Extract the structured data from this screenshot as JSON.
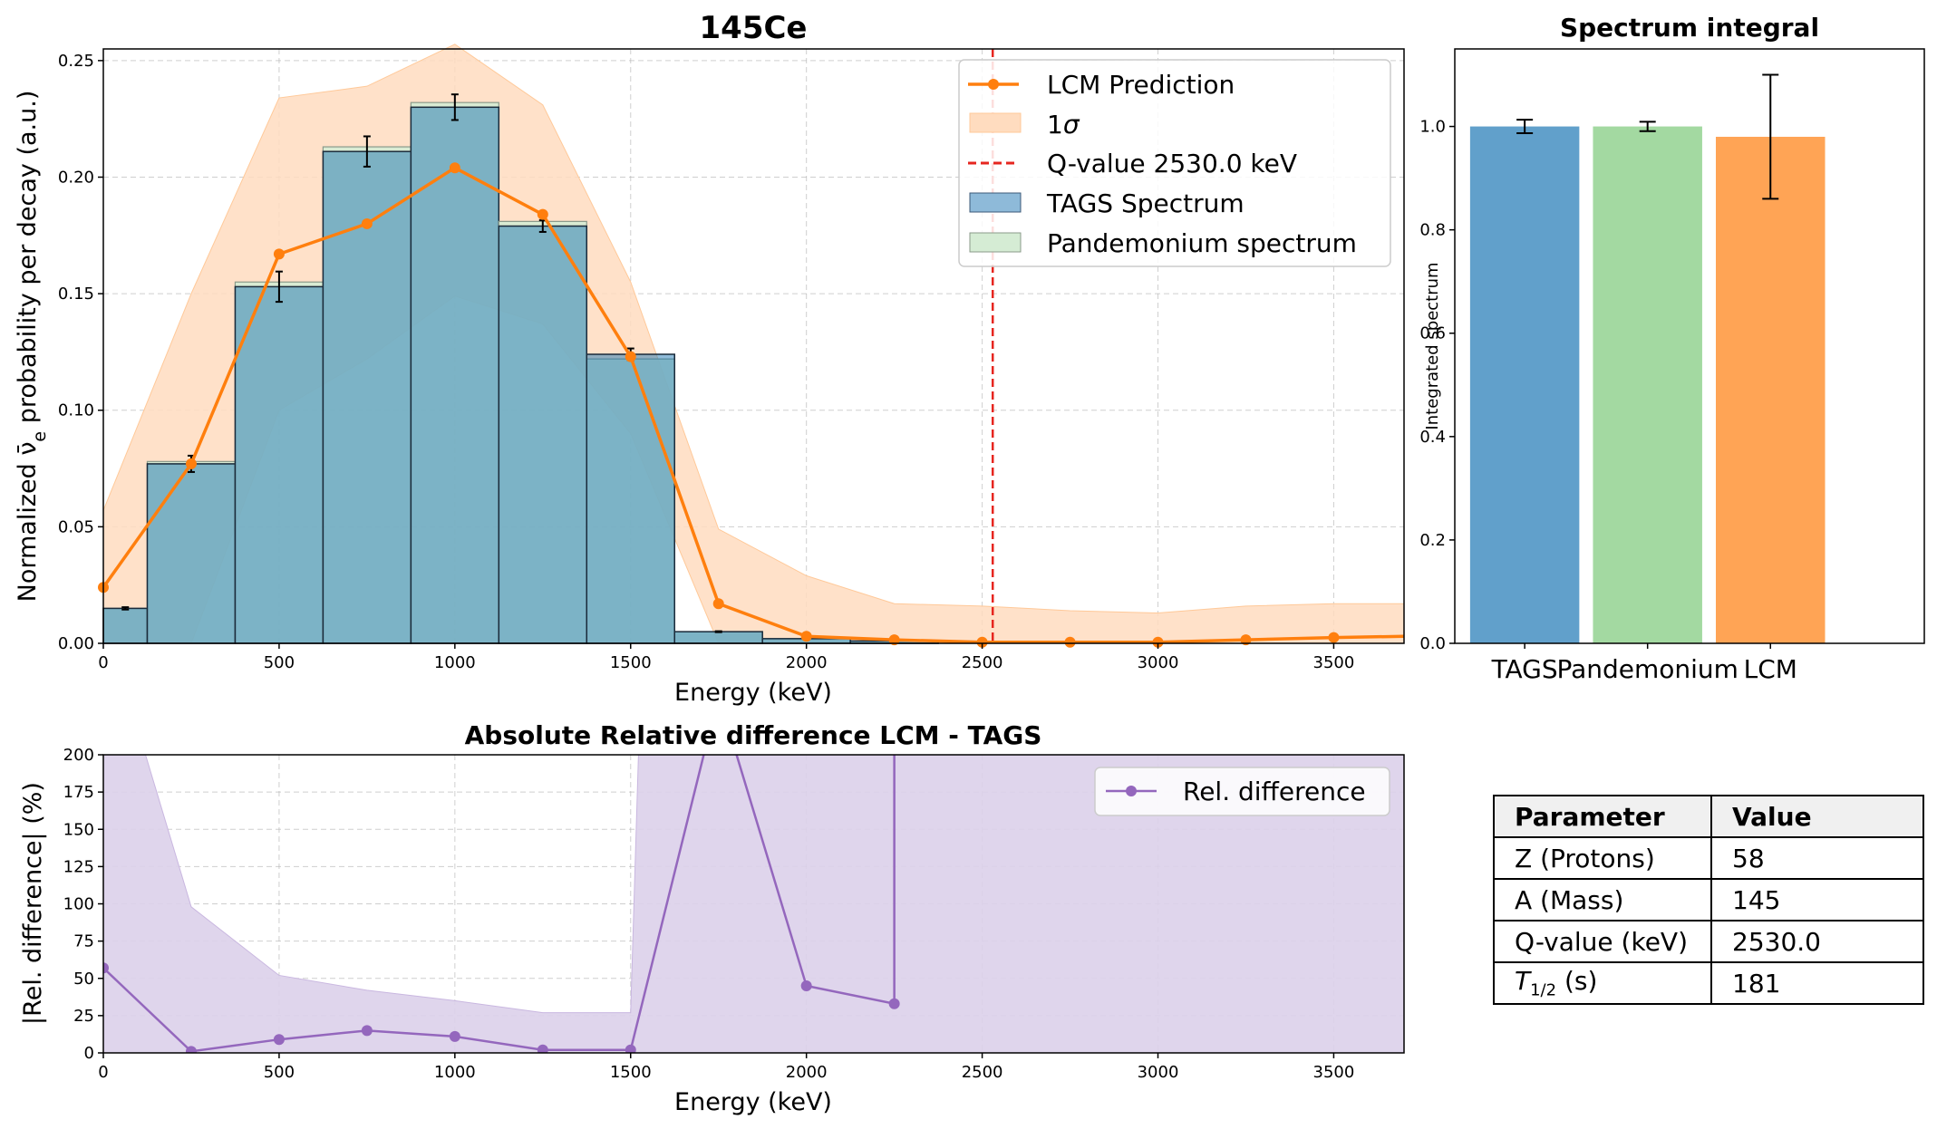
{
  "chart_data": [
    {
      "type": "bar",
      "title": "145Ce",
      "xlabel": "Energy (keV)",
      "ylabel": "Normalized ν̄e probability per decay (a.u.)",
      "xlim": [
        0,
        3700
      ],
      "ylim": [
        0,
        0.255
      ],
      "xticks": [
        "0",
        "500",
        "1000",
        "1500",
        "2000",
        "2500",
        "3000",
        "3500"
      ],
      "yticks": [
        "0.00",
        "0.05",
        "0.10",
        "0.15",
        "0.20",
        "0.25"
      ],
      "grid": true,
      "legend_position": "top-right",
      "legend": [
        "LCM Prediction",
        "1σ",
        "Q-value 2530.0 keV",
        "TAGS Spectrum",
        "Pandemonium spectrum"
      ],
      "bins_lower_edges": [
        0,
        125,
        375,
        625,
        875,
        1125,
        1375,
        1625,
        1875,
        2125
      ],
      "bins_upper_edges": [
        125,
        375,
        625,
        875,
        1125,
        1375,
        1625,
        1875,
        2125,
        2375
      ],
      "tags_spectrum": [
        0.015,
        0.077,
        0.153,
        0.211,
        0.23,
        0.179,
        0.124,
        0.005,
        0.002,
        0.001
      ],
      "tags_errors": [
        0.0005,
        0.0035,
        0.0065,
        0.0065,
        0.0055,
        0.0025,
        0.0025,
        0.0002,
        0.0001,
        0.0001
      ],
      "pandemonium_spectrum": [
        0.015,
        0.078,
        0.155,
        0.213,
        0.232,
        0.181,
        0.122,
        0.005,
        0.002,
        0.001
      ],
      "lcm_prediction": {
        "x": [
          0,
          250,
          500,
          750,
          1000,
          1250,
          1500,
          1750,
          2000,
          2250,
          2500,
          2750,
          3000,
          3250,
          3500,
          3700
        ],
        "y": [
          0.024,
          0.077,
          0.167,
          0.18,
          0.204,
          0.184,
          0.123,
          0.017,
          0.003,
          0.0015,
          0.0005,
          0.0005,
          0.0005,
          0.0015,
          0.0025,
          0.003
        ],
        "markers": [
          true,
          true,
          true,
          true,
          true,
          true,
          true,
          true,
          true,
          true,
          true,
          true,
          true,
          true,
          true,
          false
        ]
      },
      "one_sigma_band": {
        "x": [
          0,
          250,
          500,
          750,
          1000,
          1250,
          1500,
          1750,
          2000,
          2250,
          2500,
          2750,
          3000,
          3250,
          3500,
          3700
        ],
        "upper": [
          0.057,
          0.15,
          0.234,
          0.239,
          0.258,
          0.231,
          0.155,
          0.049,
          0.029,
          0.017,
          0.016,
          0.014,
          0.013,
          0.016,
          0.017,
          0.017
        ],
        "lower": [
          0.0,
          0.0,
          0.1,
          0.122,
          0.149,
          0.137,
          0.09,
          0.0,
          0.0,
          0.0,
          0.0,
          0.0,
          0.0,
          0.0,
          0.0,
          0.0
        ]
      },
      "q_value_line_kev": 2530.0,
      "colors": {
        "lcm": "#ff7f0e",
        "band": "#ffdcbf",
        "tags": "#1f77b4",
        "pandemonium": "#2ca02c",
        "qvalue": "#e6261f"
      }
    },
    {
      "type": "bar",
      "title": "Spectrum integral",
      "ylabel": "Integrated spectrum",
      "categories": [
        "TAGS",
        "Pandemonium",
        "LCM"
      ],
      "values": [
        1.0,
        1.0,
        0.98
      ],
      "errors": [
        0.013,
        0.009,
        0.12
      ],
      "ylim": [
        0,
        1.15
      ],
      "yticks": [
        "0.0",
        "0.2",
        "0.4",
        "0.6",
        "0.8",
        "1.0"
      ],
      "grid": false,
      "colors": [
        "#61a0cb",
        "#a3d9a1",
        "#ffa455"
      ]
    },
    {
      "type": "line",
      "title": "Absolute Relative difference LCM - TAGS",
      "xlabel": "Energy (keV)",
      "ylabel": "|Rel. difference| (%)",
      "xlim": [
        0,
        3700
      ],
      "ylim": [
        0,
        200
      ],
      "xticks": [
        "0",
        "500",
        "1000",
        "1500",
        "2000",
        "2500",
        "3000",
        "3500"
      ],
      "yticks": [
        "0",
        "25",
        "50",
        "75",
        "100",
        "125",
        "150",
        "175",
        "200"
      ],
      "grid": true,
      "legend_position": "top-right",
      "legend": [
        "Rel. difference"
      ],
      "series": [
        {
          "name": "Rel. difference",
          "x": [
            0,
            250,
            500,
            750,
            1000,
            1250,
            1500,
            1750,
            2000,
            2250,
            2250
          ],
          "y": [
            57,
            1,
            9,
            15,
            11,
            2,
            2,
            240,
            45,
            33,
            260
          ]
        }
      ],
      "band": {
        "x": [
          0,
          120,
          250,
          500,
          750,
          1000,
          1250,
          1500,
          1530,
          3700
        ],
        "upper": [
          260,
          200,
          98,
          52,
          42,
          35,
          27,
          27,
          260,
          260
        ],
        "lower": [
          0,
          0,
          0,
          0,
          0,
          0,
          0,
          0,
          0,
          0
        ]
      },
      "colors": {
        "line": "#9467bd",
        "band": "#dcd0ea"
      }
    }
  ],
  "table": {
    "headers": [
      "Parameter",
      "Value"
    ],
    "rows": [
      [
        "Z (Protons)",
        "58"
      ],
      [
        "A (Mass)",
        "145"
      ],
      [
        "Q-value (keV)",
        "2530.0"
      ],
      [
        "T1/2 (s)",
        "181"
      ]
    ]
  }
}
